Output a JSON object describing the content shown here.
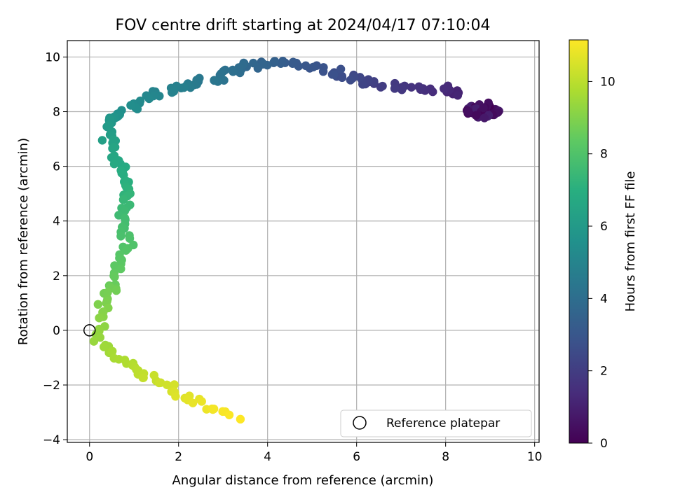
{
  "chart_data": {
    "type": "scatter",
    "title": "FOV centre drift starting at 2024/04/17 07:10:04",
    "xlabel": "Angular distance from reference (arcmin)",
    "ylabel": "Rotation from reference (arcmin)",
    "xlim": [
      -0.5,
      10.1
    ],
    "ylim": [
      -4.1,
      10.6
    ],
    "xticks": [
      0,
      2,
      4,
      6,
      8,
      10
    ],
    "yticks": [
      -4,
      -2,
      0,
      2,
      4,
      6,
      8,
      10
    ],
    "x_tick_labels": [
      "0",
      "2",
      "4",
      "6",
      "8",
      "10"
    ],
    "y_tick_labels": [
      "−4",
      "−2",
      "0",
      "2",
      "4",
      "6",
      "8",
      "10"
    ],
    "grid": true,
    "colormap": "viridis",
    "colorbar": {
      "label": "Hours from first FF file",
      "min": 0,
      "max": 11.15,
      "ticks": [
        0,
        2,
        4,
        6,
        8,
        10
      ],
      "tick_labels": [
        "0",
        "2",
        "4",
        "6",
        "8",
        "10"
      ]
    },
    "legend": {
      "position": "lower-right",
      "entries": [
        {
          "label": "Reference platepar",
          "marker": "open-circle"
        }
      ]
    },
    "reference_point": {
      "x": 0,
      "y": 0
    },
    "segments_t": [
      {
        "t": 0.0,
        "x": 9.3,
        "y": 8.0
      },
      {
        "t": 1.3,
        "x": 8.0,
        "y": 8.8
      },
      {
        "t": 2.0,
        "x": 6.5,
        "y": 9.0
      },
      {
        "t": 2.7,
        "x": 5.5,
        "y": 9.4
      },
      {
        "t": 3.2,
        "x": 4.4,
        "y": 9.85
      },
      {
        "t": 3.8,
        "x": 3.5,
        "y": 9.7
      },
      {
        "t": 4.3,
        "x": 2.8,
        "y": 9.2
      },
      {
        "t": 5.0,
        "x": 1.6,
        "y": 8.7
      },
      {
        "t": 5.5,
        "x": 0.7,
        "y": 8.0
      },
      {
        "t": 6.0,
        "x": 0.35,
        "y": 7.5
      },
      {
        "t": 6.5,
        "x": 0.55,
        "y": 6.5
      },
      {
        "t": 7.0,
        "x": 0.85,
        "y": 5.5
      },
      {
        "t": 7.5,
        "x": 0.75,
        "y": 4.5
      },
      {
        "t": 8.0,
        "x": 0.8,
        "y": 3.2
      },
      {
        "t": 8.5,
        "x": 0.6,
        "y": 1.8
      },
      {
        "t": 9.0,
        "x": 0.3,
        "y": 0.8
      },
      {
        "t": 9.4,
        "x": 0.2,
        "y": -0.4
      },
      {
        "t": 9.8,
        "x": 0.8,
        "y": -1.2
      },
      {
        "t": 10.3,
        "x": 1.6,
        "y": -1.9
      },
      {
        "t": 10.8,
        "x": 2.4,
        "y": -2.7
      },
      {
        "t": 11.15,
        "x": 3.3,
        "y": -3.1
      }
    ],
    "cluster": {
      "t_start": 0.0,
      "t_end": 1.0,
      "count": 70,
      "cx": 8.85,
      "cy": 8.0,
      "rx": 0.45,
      "ry": 0.3
    },
    "sample_count": 280,
    "jitter": 0.22
  }
}
